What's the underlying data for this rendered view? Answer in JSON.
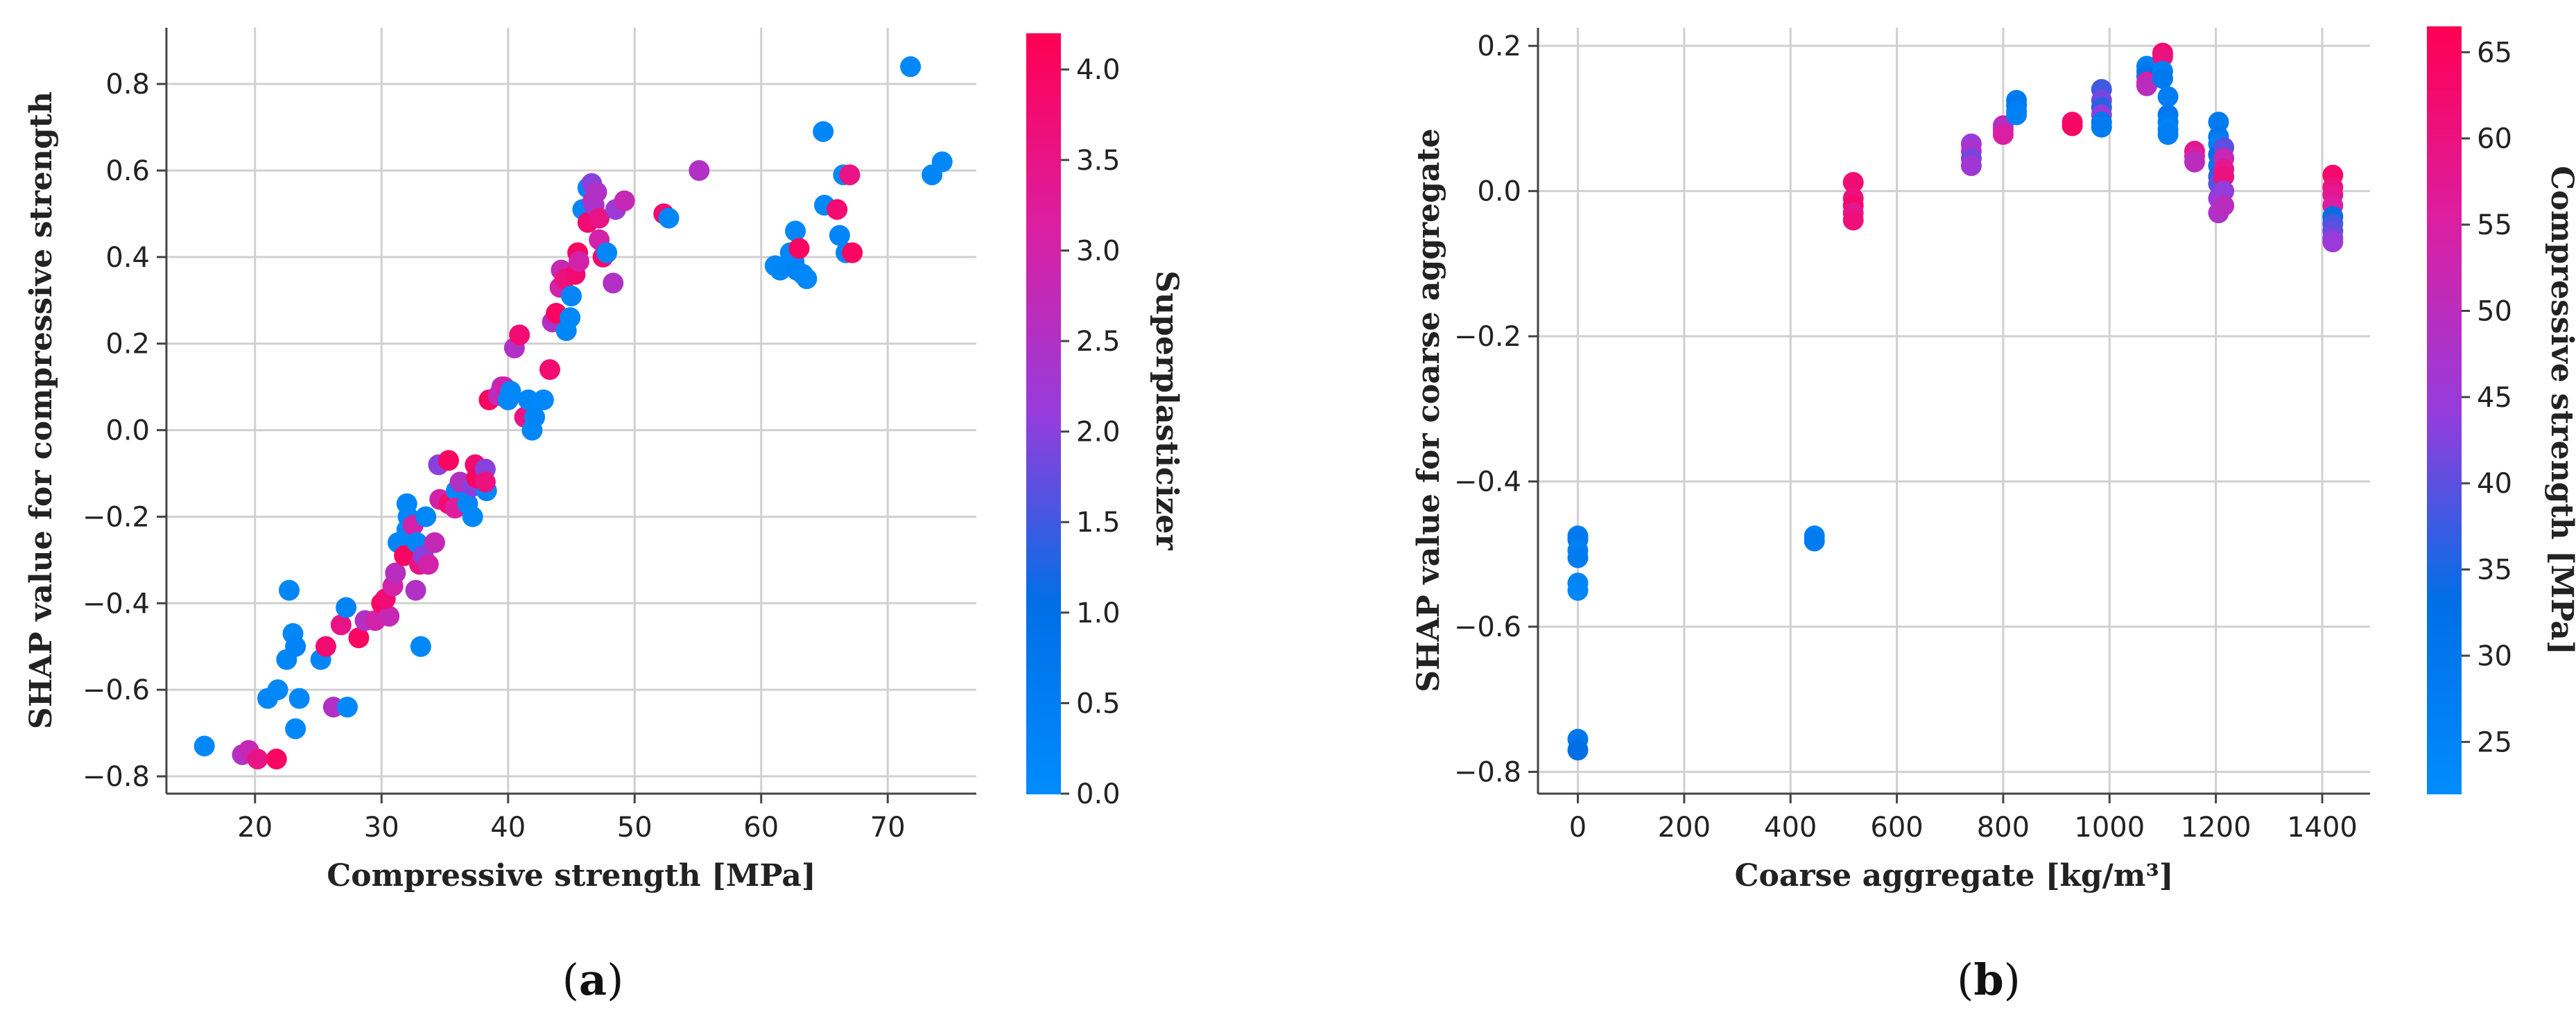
{
  "chart_data": [
    {
      "panel": "(a)",
      "panel_parts": [
        "(",
        "a",
        ")"
      ],
      "type": "scatter",
      "title": "",
      "xlabel": "Compressive strength [MPa]",
      "ylabel": "SHAP value for compressive strength",
      "xlim": [
        13,
        77
      ],
      "ylim": [
        -0.84,
        0.93
      ],
      "xticks": [
        20,
        30,
        40,
        50,
        60,
        70
      ],
      "yticks": [
        -0.8,
        -0.6,
        -0.4,
        -0.2,
        0.0,
        0.2,
        0.4,
        0.6,
        0.8
      ],
      "xtick_labels": [
        "20",
        "30",
        "40",
        "50",
        "60",
        "70"
      ],
      "ytick_labels": [
        "−0.8",
        "−0.6",
        "−0.4",
        "−0.2",
        "0.0",
        "0.2",
        "0.4",
        "0.6",
        "0.8"
      ],
      "grid": true,
      "colorbar": {
        "label": "Superplasticizer",
        "range": [
          0.0,
          4.2
        ],
        "ticks": [
          0.0,
          0.5,
          1.0,
          1.5,
          2.0,
          2.5,
          3.0,
          3.5,
          4.0
        ],
        "tick_labels": [
          "0.0",
          "0.5",
          "1.0",
          "1.5",
          "2.0",
          "2.5",
          "3.0",
          "3.5",
          "4.0"
        ]
      },
      "points": [
        [
          16,
          -0.73,
          0.1
        ],
        [
          19,
          -0.75,
          2.5
        ],
        [
          19.5,
          -0.74,
          2.8
        ],
        [
          20.2,
          -0.76,
          3.5
        ],
        [
          21.7,
          -0.76,
          4.0
        ],
        [
          21,
          -0.62,
          0.2
        ],
        [
          21.8,
          -0.6,
          0.1
        ],
        [
          22.5,
          -0.53,
          0.2
        ],
        [
          23,
          -0.47,
          0.1
        ],
        [
          23.2,
          -0.5,
          0.3
        ],
        [
          22.7,
          -0.37,
          0.2
        ],
        [
          23.5,
          -0.62,
          0.1
        ],
        [
          23.2,
          -0.69,
          0.1
        ],
        [
          25.2,
          -0.53,
          0.2
        ],
        [
          25.6,
          -0.5,
          3.8
        ],
        [
          26.2,
          -0.64,
          2.5
        ],
        [
          27.3,
          -0.64,
          0.1
        ],
        [
          26.8,
          -0.45,
          3.5
        ],
        [
          27.2,
          -0.41,
          0.3
        ],
        [
          28.2,
          -0.48,
          4.0
        ],
        [
          28.7,
          -0.44,
          2.5
        ],
        [
          29.5,
          -0.44,
          3.0
        ],
        [
          30,
          -0.4,
          4.0
        ],
        [
          30.6,
          -0.43,
          2.8
        ],
        [
          30.3,
          -0.39,
          3.8
        ],
        [
          30.9,
          -0.36,
          3.0
        ],
        [
          31.1,
          -0.33,
          2.6
        ],
        [
          31.3,
          -0.26,
          0.2
        ],
        [
          31.8,
          -0.29,
          4.0
        ],
        [
          32,
          -0.23,
          0.1
        ],
        [
          32.1,
          -0.2,
          0.3
        ],
        [
          32,
          -0.17,
          0.2
        ],
        [
          32.5,
          -0.22,
          3.0
        ],
        [
          32.8,
          -0.26,
          0.2
        ],
        [
          33,
          -0.31,
          3.5
        ],
        [
          33.3,
          -0.29,
          2.0
        ],
        [
          32.7,
          -0.37,
          2.5
        ],
        [
          33.1,
          -0.5,
          0.1
        ],
        [
          33.5,
          -0.2,
          0.2
        ],
        [
          34.2,
          -0.26,
          2.8
        ],
        [
          33.7,
          -0.31,
          3.0
        ],
        [
          34.5,
          -0.08,
          2.0
        ],
        [
          34.6,
          -0.16,
          3.0
        ],
        [
          35.3,
          -0.07,
          4.0
        ],
        [
          35.3,
          -0.17,
          3.8
        ],
        [
          35.9,
          -0.14,
          0.1
        ],
        [
          36.2,
          -0.12,
          2.5
        ],
        [
          35.8,
          -0.18,
          3.2
        ],
        [
          36.8,
          -0.17,
          0.2
        ],
        [
          37.2,
          -0.13,
          2.0
        ],
        [
          37.4,
          -0.08,
          3.8
        ],
        [
          37.5,
          -0.11,
          4.0
        ],
        [
          37.2,
          -0.2,
          0.1
        ],
        [
          38.2,
          -0.09,
          2.0
        ],
        [
          38.3,
          -0.14,
          0.2
        ],
        [
          38.2,
          -0.12,
          3.6
        ],
        [
          38.5,
          0.07,
          4.0
        ],
        [
          39.2,
          0.08,
          2.8
        ],
        [
          39.5,
          0.1,
          2.5
        ],
        [
          39.7,
          0.1,
          3.0
        ],
        [
          40.0,
          0.07,
          0.2
        ],
        [
          40.2,
          0.09,
          0.1
        ],
        [
          40.5,
          0.19,
          2.5
        ],
        [
          40.9,
          0.22,
          3.8
        ],
        [
          41.3,
          0.03,
          3.5
        ],
        [
          41.6,
          0.07,
          0.2
        ],
        [
          41.9,
          0.0,
          0.1
        ],
        [
          42.1,
          0.03,
          0.2
        ],
        [
          42.8,
          0.07,
          0.1
        ],
        [
          43.3,
          0.14,
          3.8
        ],
        [
          43.5,
          0.25,
          2.5
        ],
        [
          43.8,
          0.27,
          4.0
        ],
        [
          44.1,
          0.33,
          3.0
        ],
        [
          44.2,
          0.37,
          2.8
        ],
        [
          44.5,
          0.35,
          3.6
        ],
        [
          44.6,
          0.23,
          0.2
        ],
        [
          44.9,
          0.26,
          0.1
        ],
        [
          45.0,
          0.31,
          0.2
        ],
        [
          45.3,
          0.36,
          3.8
        ],
        [
          45.5,
          0.41,
          4.0
        ],
        [
          45.6,
          0.39,
          3.0
        ],
        [
          45.9,
          0.51,
          0.2
        ],
        [
          46.3,
          0.56,
          0.1
        ],
        [
          46.6,
          0.57,
          2.0
        ],
        [
          46.3,
          0.48,
          3.8
        ],
        [
          46.7,
          0.53,
          2.8
        ],
        [
          46.8,
          0.52,
          2.4
        ],
        [
          47.0,
          0.55,
          2.5
        ],
        [
          47.2,
          0.44,
          3.0
        ],
        [
          47.2,
          0.49,
          3.5
        ],
        [
          47.5,
          0.4,
          3.8
        ],
        [
          47.8,
          0.41,
          0.2
        ],
        [
          48.3,
          0.34,
          2.5
        ],
        [
          48.5,
          0.51,
          2.2
        ],
        [
          49.2,
          0.53,
          2.8
        ],
        [
          52.3,
          0.5,
          3.8
        ],
        [
          52.7,
          0.49,
          0.2
        ],
        [
          55.1,
          0.6,
          2.5
        ],
        [
          61.1,
          0.38,
          0.1
        ],
        [
          61.5,
          0.37,
          0.2
        ],
        [
          62.3,
          0.41,
          0.1
        ],
        [
          62.6,
          0.39,
          0.2
        ],
        [
          62.7,
          0.46,
          0.1
        ],
        [
          62.8,
          0.37,
          0.3
        ],
        [
          63.0,
          0.42,
          4.0
        ],
        [
          63.3,
          0.36,
          0.2
        ],
        [
          63.6,
          0.35,
          0.1
        ],
        [
          64.9,
          0.69,
          0.2
        ],
        [
          65.0,
          0.52,
          0.1
        ],
        [
          66.0,
          0.51,
          3.8
        ],
        [
          66.2,
          0.45,
          0.2
        ],
        [
          66.5,
          0.59,
          0.1
        ],
        [
          66.7,
          0.41,
          0.2
        ],
        [
          67.0,
          0.59,
          3.5
        ],
        [
          67.2,
          0.41,
          4.0
        ],
        [
          71.8,
          0.84,
          0.1
        ],
        [
          73.5,
          0.59,
          0.2
        ],
        [
          74.3,
          0.62,
          0.1
        ]
      ]
    },
    {
      "panel": "(b)",
      "panel_parts": [
        "(",
        "b",
        ")"
      ],
      "type": "scatter",
      "title": "",
      "xlabel": "Coarse aggregate [kg/m³]",
      "ylabel": "SHAP value for coarse aggregate",
      "xlim": [
        -75,
        1490
      ],
      "ylim": [
        -0.83,
        0.225
      ],
      "xticks": [
        0,
        200,
        400,
        600,
        800,
        1000,
        1200,
        1400
      ],
      "yticks": [
        -0.8,
        -0.6,
        -0.4,
        -0.2,
        0.0,
        0.2
      ],
      "xtick_labels": [
        "0",
        "200",
        "400",
        "600",
        "800",
        "1000",
        "1200",
        "1400"
      ],
      "ytick_labels": [
        "−0.8",
        "−0.6",
        "−0.4",
        "−0.2",
        "0.0",
        "0.2"
      ],
      "grid": true,
      "colorbar": {
        "label": "Compressive strength [MPa]",
        "range": [
          22,
          66.5
        ],
        "ticks": [
          25,
          30,
          35,
          40,
          45,
          50,
          55,
          60,
          65
        ],
        "tick_labels": [
          "25",
          "30",
          "35",
          "40",
          "45",
          "50",
          "55",
          "60",
          "65"
        ]
      },
      "points": [
        [
          0,
          -0.475,
          27
        ],
        [
          0,
          -0.48,
          29
        ],
        [
          0,
          -0.495,
          26
        ],
        [
          0,
          -0.505,
          28
        ],
        [
          0,
          -0.54,
          25
        ],
        [
          0,
          -0.55,
          24
        ],
        [
          0,
          -0.755,
          30
        ],
        [
          0,
          -0.77,
          33
        ],
        [
          445,
          -0.475,
          26
        ],
        [
          445,
          -0.482,
          28
        ],
        [
          518,
          0.012,
          62
        ],
        [
          518,
          -0.01,
          60
        ],
        [
          518,
          -0.02,
          63
        ],
        [
          518,
          -0.03,
          58
        ],
        [
          518,
          -0.04,
          61
        ],
        [
          740,
          0.065,
          45
        ],
        [
          740,
          0.055,
          48
        ],
        [
          740,
          0.045,
          42
        ],
        [
          740,
          0.035,
          46
        ],
        [
          800,
          0.09,
          52
        ],
        [
          800,
          0.085,
          48
        ],
        [
          800,
          0.078,
          55
        ],
        [
          825,
          0.125,
          28
        ],
        [
          825,
          0.118,
          30
        ],
        [
          825,
          0.11,
          27
        ],
        [
          825,
          0.105,
          26
        ],
        [
          930,
          0.095,
          62
        ],
        [
          930,
          0.09,
          64
        ],
        [
          985,
          0.14,
          38
        ],
        [
          985,
          0.125,
          42
        ],
        [
          985,
          0.115,
          36
        ],
        [
          985,
          0.105,
          44
        ],
        [
          985,
          0.095,
          30
        ],
        [
          985,
          0.088,
          28
        ],
        [
          1070,
          0.172,
          25
        ],
        [
          1070,
          0.165,
          28
        ],
        [
          1070,
          0.158,
          32
        ],
        [
          1070,
          0.15,
          55
        ],
        [
          1070,
          0.145,
          50
        ],
        [
          1100,
          0.19,
          63
        ],
        [
          1100,
          0.185,
          60
        ],
        [
          1100,
          0.165,
          26
        ],
        [
          1100,
          0.155,
          29
        ],
        [
          1110,
          0.13,
          27
        ],
        [
          1110,
          0.105,
          30
        ],
        [
          1110,
          0.095,
          28
        ],
        [
          1110,
          0.085,
          25
        ],
        [
          1110,
          0.078,
          27
        ],
        [
          1160,
          0.055,
          58
        ],
        [
          1160,
          0.048,
          55
        ],
        [
          1160,
          0.04,
          50
        ],
        [
          1205,
          0.095,
          28
        ],
        [
          1205,
          0.075,
          30
        ],
        [
          1205,
          0.065,
          26
        ],
        [
          1205,
          0.05,
          33
        ],
        [
          1205,
          0.035,
          30
        ],
        [
          1205,
          0.02,
          36
        ],
        [
          1205,
          0.01,
          40
        ],
        [
          1205,
          -0.01,
          45
        ],
        [
          1205,
          -0.03,
          48
        ],
        [
          1215,
          0.06,
          40
        ],
        [
          1215,
          0.045,
          52
        ],
        [
          1215,
          0.03,
          58
        ],
        [
          1215,
          0.02,
          60
        ],
        [
          1215,
          0.0,
          44
        ],
        [
          1215,
          -0.02,
          50
        ],
        [
          1420,
          0.022,
          63
        ],
        [
          1420,
          0.005,
          60
        ],
        [
          1420,
          -0.005,
          58
        ],
        [
          1420,
          -0.02,
          55
        ],
        [
          1420,
          -0.035,
          33
        ],
        [
          1420,
          -0.045,
          38
        ],
        [
          1420,
          -0.055,
          40
        ],
        [
          1420,
          -0.065,
          42
        ],
        [
          1420,
          -0.07,
          45
        ]
      ]
    }
  ]
}
